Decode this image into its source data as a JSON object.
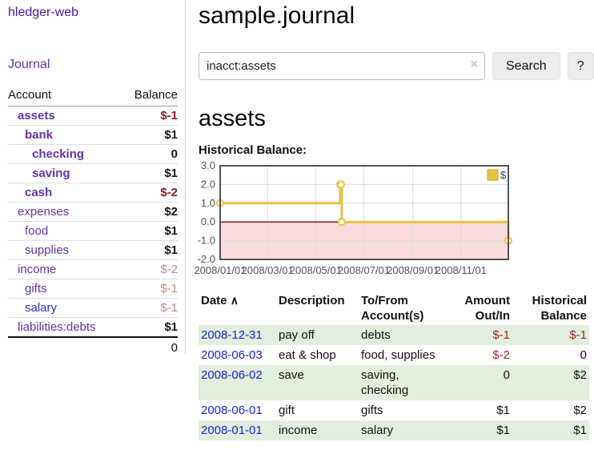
{
  "sidebar": {
    "brand": "hledger-web",
    "nav": {
      "journal": "Journal"
    },
    "accounts_table": {
      "headers": {
        "account": "Account",
        "balance": "Balance"
      },
      "rows": [
        {
          "name": "assets",
          "balance": "$-1",
          "indent": 1,
          "bold": true,
          "negative": "strong"
        },
        {
          "name": "bank",
          "balance": "$1",
          "indent": 2,
          "bold": true,
          "negative": ""
        },
        {
          "name": "checking",
          "balance": "0",
          "indent": 3,
          "bold": true,
          "negative": ""
        },
        {
          "name": "saving",
          "balance": "$1",
          "indent": 3,
          "bold": true,
          "negative": ""
        },
        {
          "name": "cash",
          "balance": "$-2",
          "indent": 2,
          "bold": true,
          "negative": "strong"
        },
        {
          "name": "expenses",
          "balance": "$2",
          "indent": 1,
          "bold": false,
          "negative": ""
        },
        {
          "name": "food",
          "balance": "$1",
          "indent": 2,
          "bold": false,
          "negative": ""
        },
        {
          "name": "supplies",
          "balance": "$1",
          "indent": 2,
          "bold": false,
          "negative": ""
        },
        {
          "name": "income",
          "balance": "$-2",
          "indent": 1,
          "bold": false,
          "negative": "soft"
        },
        {
          "name": "gifts",
          "balance": "$-1",
          "indent": 2,
          "bold": false,
          "negative": "soft"
        },
        {
          "name": "salary",
          "balance": "$-1",
          "indent": 2,
          "bold": false,
          "negative": "soft",
          "link_blue": true
        },
        {
          "name": "liabilities:debts",
          "balance": "$1",
          "indent": 1,
          "bold": false,
          "negative": ""
        }
      ],
      "total": "0"
    }
  },
  "header": {
    "title": "sample.journal"
  },
  "search": {
    "value": "inacct:assets",
    "clear_icon": "×",
    "search_label": "Search",
    "help_label": "?"
  },
  "account_page": {
    "heading": "assets",
    "chart_title": "Historical Balance:"
  },
  "chart_data": {
    "type": "line",
    "step": true,
    "title": "Historical Balance:",
    "series": [
      {
        "name": "$",
        "x_dates": [
          "2008-01-01",
          "2008-06-01",
          "2008-06-02",
          "2008-06-03",
          "2008-12-31"
        ],
        "x_days": [
          0,
          152,
          153,
          154,
          365
        ],
        "values": [
          1,
          2,
          2,
          0,
          -1
        ],
        "color": "#e8c340"
      }
    ],
    "xlim": [
      0,
      365
    ],
    "ylim": [
      -2,
      3
    ],
    "x_ticks": [
      {
        "pos": 0,
        "label": "2008/01/01"
      },
      {
        "pos": 60,
        "label": "2008/03/01"
      },
      {
        "pos": 121,
        "label": "2008/05/01"
      },
      {
        "pos": 182,
        "label": "2008/07/01"
      },
      {
        "pos": 244,
        "label": "2008/09/01"
      },
      {
        "pos": 305,
        "label": "2008/11/01"
      }
    ],
    "y_ticks": [
      {
        "value": 3,
        "label": "3.0"
      },
      {
        "value": 2,
        "label": "2.0"
      },
      {
        "value": 1,
        "label": "1.0"
      },
      {
        "value": 0,
        "label": "0.0"
      },
      {
        "value": -1,
        "label": "-1.0"
      },
      {
        "value": -2,
        "label": "-2.0"
      }
    ],
    "grid": true,
    "legend": {
      "label": "$",
      "position": "top-right"
    },
    "colors": {
      "line": "#e8c340",
      "marker_fill": "#ffffff",
      "negative_region": "#fbdcdc",
      "zero_line": "#8b0000",
      "plot_border": "#545454",
      "gridline": "#dcdcdc",
      "axis_text": "#545454"
    }
  },
  "register": {
    "headers": {
      "date": "Date",
      "sort_icon": "∧",
      "description": "Description",
      "tofrom_line1": "To/From",
      "tofrom_line2": "Account(s)",
      "amount_line1": "Amount",
      "amount_line2": "Out/In",
      "historical_line1": "Historical",
      "historical_line2": "Balance"
    },
    "rows": [
      {
        "date": "2008-12-31",
        "description": "pay off",
        "accounts": "debts",
        "amount": "$-1",
        "amount_neg": true,
        "balance": "$-1",
        "balance_neg": true
      },
      {
        "date": "2008-06-03",
        "description": "eat & shop",
        "accounts": "food, supplies",
        "amount": "$-2",
        "amount_neg": true,
        "balance": "0",
        "balance_neg": false
      },
      {
        "date": "2008-06-02",
        "description": "save",
        "accounts": "saving, checking",
        "amount": "0",
        "amount_neg": false,
        "balance": "$2",
        "balance_neg": false
      },
      {
        "date": "2008-06-01",
        "description": "gift",
        "accounts": "gifts",
        "amount": "$1",
        "amount_neg": false,
        "balance": "$2",
        "balance_neg": false
      },
      {
        "date": "2008-01-01",
        "description": "income",
        "accounts": "salary",
        "amount": "$1",
        "amount_neg": false,
        "balance": "$1",
        "balance_neg": false
      }
    ]
  }
}
